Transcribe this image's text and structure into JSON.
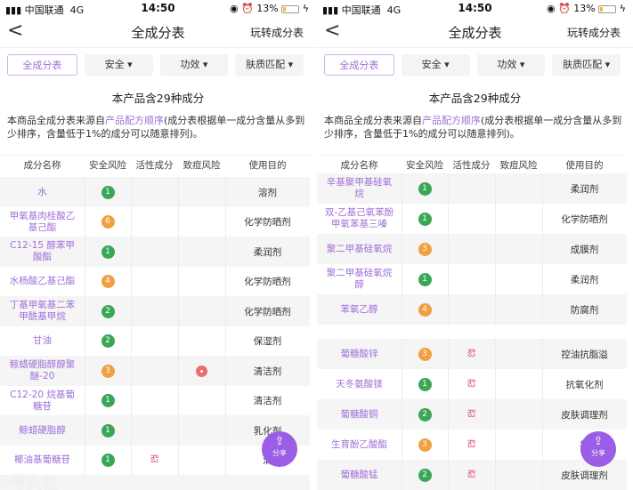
{
  "status": {
    "carrier": "中国联通",
    "network": "4G",
    "time": "14:50",
    "battery": "13%"
  },
  "nav": {
    "title": "全成分表",
    "right": "玩转成分表"
  },
  "tabs": [
    "全成分表",
    "安全 ▾",
    "功效 ▾",
    "肤质匹配 ▾"
  ],
  "count_text": "本产品含29种成分",
  "desc": {
    "prefix": "本商品全成分表来源自",
    "link": "产品配方顺序",
    "suffix": "(成分表根据单一成分含量从多到少排序，含量低于1%的成分可以随意排列)。"
  },
  "columns": [
    "成分名称",
    "安全风险",
    "活性成分",
    "致痘风险",
    "使用目的"
  ],
  "colors": {
    "accent": "#a070d8",
    "safe": "#3aa757",
    "medium": "#f0a040",
    "acne": "#e87070",
    "share": "#9b5ce6"
  },
  "share_label": "分享",
  "watermark": "5号女性",
  "left_rows": [
    {
      "name": "水",
      "risk": "1",
      "active": false,
      "acne": false,
      "purpose": "溶剂"
    },
    {
      "name": "甲氧基肉桂酸乙基己酯",
      "risk": "6",
      "active": false,
      "acne": false,
      "purpose": "化学防晒剂"
    },
    {
      "name": "C12-15 醇苯甲酸酯",
      "risk": "1",
      "active": false,
      "acne": false,
      "purpose": "柔润剂"
    },
    {
      "name": "水杨酸乙基己酯",
      "risk": "4",
      "active": false,
      "acne": false,
      "purpose": "化学防晒剂"
    },
    {
      "name": "丁基甲氧基二苯甲酰基甲烷",
      "risk": "2",
      "active": false,
      "acne": false,
      "purpose": "化学防晒剂"
    },
    {
      "name": "甘油",
      "risk": "2",
      "active": false,
      "acne": false,
      "purpose": "保湿剂"
    },
    {
      "name": "鲸蜡硬脂醇醇聚醚-20",
      "risk": "3",
      "active": false,
      "acne": true,
      "purpose": "清洁剂"
    },
    {
      "name": "C12-20 烷基葡糖苷",
      "risk": "1",
      "active": false,
      "acne": false,
      "purpose": "清洁剂"
    },
    {
      "name": "鲸蜡硬脂醇",
      "risk": "1",
      "active": false,
      "acne": false,
      "purpose": "乳化剂"
    },
    {
      "name": "椰油基葡糖苷",
      "risk": "1",
      "active": true,
      "acne": false,
      "purpose": "清"
    }
  ],
  "right_rows_a": [
    {
      "name": "辛基聚甲基硅氧烷",
      "risk": "1",
      "active": false,
      "acne": false,
      "purpose": "柔润剂"
    },
    {
      "name": "双-乙基己氧苯酚甲氧苯基三嗪",
      "risk": "1",
      "active": false,
      "acne": false,
      "purpose": "化学防晒剂"
    },
    {
      "name": "聚二甲基硅氧烷",
      "risk": "3",
      "active": false,
      "acne": false,
      "purpose": "成膜剂"
    },
    {
      "name": "聚二甲基硅氧烷醇",
      "risk": "1",
      "active": false,
      "acne": false,
      "purpose": "柔润剂"
    },
    {
      "name": "苯氧乙醇",
      "risk": "4",
      "active": false,
      "acne": false,
      "purpose": "防腐剂"
    }
  ],
  "right_rows_b": [
    {
      "name": "葡糖酸锌",
      "risk": "3",
      "active": true,
      "acne": false,
      "purpose": "控油抗脂溢"
    },
    {
      "name": "天冬氨酸镁",
      "risk": "1",
      "active": true,
      "acne": false,
      "purpose": "抗氧化剂"
    },
    {
      "name": "葡糖酸铜",
      "risk": "2",
      "active": true,
      "acne": false,
      "purpose": "皮肤调理剂"
    },
    {
      "name": "生育酚乙酸酯",
      "risk": "3",
      "active": true,
      "acne": false,
      "purpose": "抗"
    },
    {
      "name": "葡糖酸锰",
      "risk": "2",
      "active": true,
      "acne": false,
      "purpose": "皮肤调理剂"
    }
  ]
}
